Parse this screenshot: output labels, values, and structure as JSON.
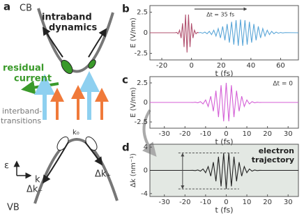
{
  "panel_a": {
    "label": "a",
    "cb": "CB",
    "vb": "VB",
    "intraband": [
      "intraband",
      "dynamics"
    ],
    "residual": [
      "residual",
      "current"
    ],
    "interband": [
      "interband-",
      "transitions"
    ],
    "k0": "k₀",
    "energy": "ε",
    "k": "k",
    "dk_minus": "Δk₋",
    "dk_plus": "Δk₊"
  },
  "chart_data": [
    {
      "type": "line",
      "label": "b",
      "xlabel": "t (fs)",
      "ylabel": "E (V/nm)",
      "annotation": "Δt = 35 fs",
      "xlim": [
        -28,
        72
      ],
      "ylim": [
        -3.3,
        3.3
      ],
      "xticks": [
        -20,
        0,
        20,
        40,
        60
      ],
      "yticks": [
        2.5,
        0,
        -2.5
      ],
      "series": [
        {
          "color": "#b0506e",
          "x": [
            -28,
            -11,
            -10,
            -9,
            -8,
            -7,
            -6,
            -5,
            -4,
            -3,
            -2,
            -1,
            0,
            1,
            2,
            3,
            4,
            5
          ],
          "values": [
            0,
            0,
            0.04,
            -0.13,
            0.31,
            -0.65,
            1.15,
            -1.73,
            2.21,
            -2.4,
            2.21,
            -1.73,
            1.15,
            -0.65,
            0.31,
            -0.13,
            0.04,
            0
          ]
        },
        {
          "color": "#5aa6d8",
          "x": [
            5,
            6,
            7.5,
            9,
            10.5,
            12,
            13.5,
            15,
            16.5,
            18,
            19.5,
            21,
            22.5,
            24,
            25.5,
            27,
            28.5,
            30,
            31.5,
            33,
            34.5,
            36,
            37.5,
            39,
            40.5,
            42,
            43.5,
            45,
            46.5,
            48,
            49.5,
            51,
            52.5,
            54,
            55.5,
            57,
            58.5,
            60,
            61.5,
            63,
            72
          ],
          "values": [
            0,
            0.04,
            -0.06,
            0.08,
            -0.12,
            0.17,
            -0.23,
            0.31,
            -0.4,
            0.51,
            -0.63,
            0.77,
            -0.91,
            1.06,
            -1.2,
            1.33,
            -1.44,
            1.53,
            -1.58,
            1.6,
            -1.58,
            1.53,
            -1.44,
            1.33,
            -1.2,
            1.06,
            -0.91,
            0.77,
            -0.63,
            0.51,
            -0.4,
            0.31,
            -0.23,
            0.17,
            -0.12,
            0.08,
            -0.06,
            0.04,
            -0.03,
            0.02,
            0
          ]
        }
      ]
    },
    {
      "type": "line",
      "label": "c",
      "xlabel": "t (fs)",
      "ylabel": "E (V/nm)",
      "annotation": "Δt = 0",
      "xlim": [
        -37,
        35
      ],
      "ylim": [
        -3.3,
        3.3
      ],
      "xticks": [
        -30,
        -20,
        -10,
        0,
        10,
        20,
        30
      ],
      "yticks": [
        2.5,
        0,
        -2.5
      ],
      "series": [
        {
          "color": "#d45fd6",
          "x": [
            -37,
            -17.5,
            -16.25,
            -15,
            -13.75,
            -12.5,
            -11.25,
            -10,
            -8.75,
            -7.5,
            -6.25,
            -5,
            -3.75,
            -2.5,
            -1.25,
            0,
            1.25,
            2.5,
            3.75,
            5,
            6.25,
            7.5,
            8.75,
            10,
            11.25,
            12.5,
            13.75,
            15,
            16.25,
            17.5,
            35
          ],
          "values": [
            0,
            0,
            -0.01,
            0.03,
            -0.05,
            0.1,
            -0.19,
            0.32,
            -0.52,
            0.79,
            -1.13,
            1.5,
            -1.88,
            2.2,
            -2.42,
            2.5,
            -2.42,
            2.2,
            -1.88,
            1.5,
            -1.13,
            0.79,
            -0.52,
            0.32,
            -0.19,
            0.1,
            -0.05,
            0.03,
            -0.01,
            0,
            0
          ]
        }
      ]
    },
    {
      "type": "line",
      "label": "d",
      "xlabel": "t (fs)",
      "ylabel": "Δk (nm⁻¹)",
      "annotation": [
        "electron",
        "trajectory"
      ],
      "xlim": [
        -37,
        35
      ],
      "ylim": [
        -4.5,
        4.5
      ],
      "xticks": [
        -30,
        -20,
        -10,
        0,
        10,
        20,
        30
      ],
      "yticks": [
        4,
        0,
        -4
      ],
      "series": [
        {
          "color": "#222222",
          "x": [
            -37,
            -17.5,
            -16.25,
            -15,
            -13.75,
            -12.5,
            -11.25,
            -10,
            -8.75,
            -7.5,
            -6.25,
            -5,
            -3.75,
            -2.5,
            -1.25,
            0,
            1.25,
            2.5,
            3.75,
            5,
            6.25,
            7.5,
            8.75,
            10,
            11.25,
            12.5,
            13.75,
            15,
            16.25,
            17.5,
            35
          ],
          "values": [
            0,
            0,
            0.01,
            -0.04,
            0.06,
            -0.13,
            0.24,
            -0.4,
            0.65,
            -0.99,
            1.41,
            -1.88,
            2.35,
            -2.75,
            3.0,
            -3.2,
            3.0,
            -2.75,
            2.35,
            -1.88,
            1.41,
            -0.99,
            0.65,
            -0.4,
            0.24,
            -0.13,
            0.06,
            -0.04,
            0.01,
            0,
            0
          ]
        }
      ]
    }
  ]
}
